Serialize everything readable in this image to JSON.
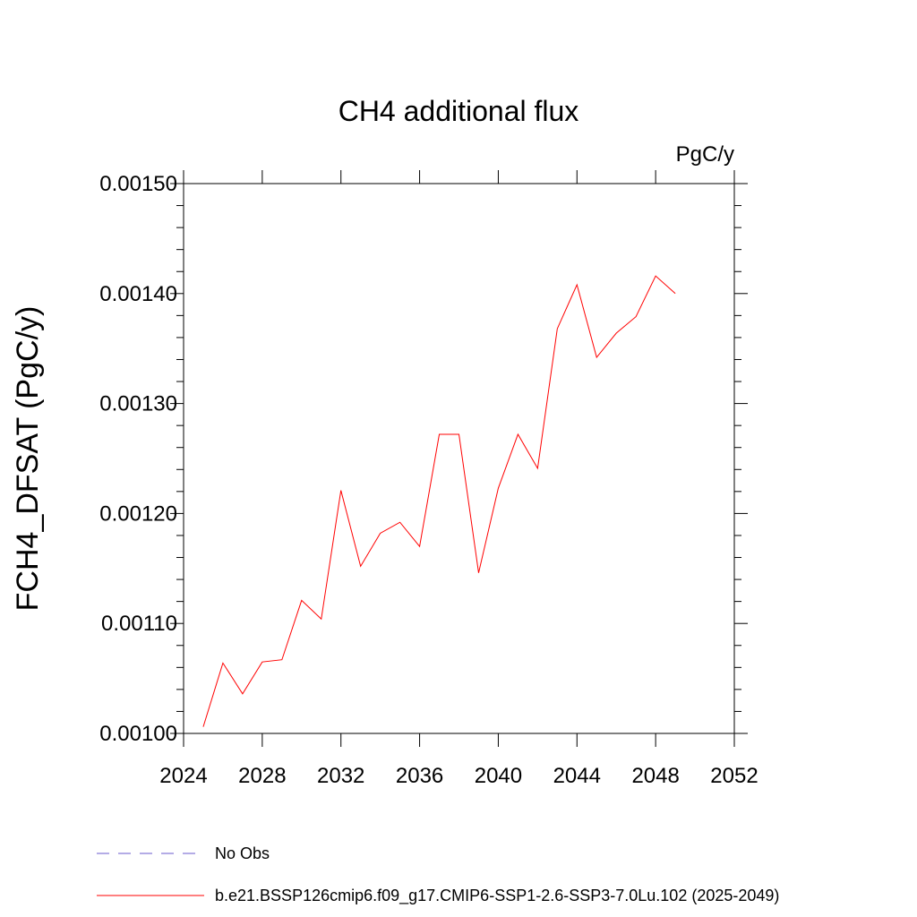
{
  "chart_data": {
    "type": "line",
    "title": "CH4 additional flux",
    "units_label": "PgC/y",
    "ylabel": "FCH4_DFSAT  (PgC/y)",
    "xlabel": "",
    "xlim": [
      2024,
      2052
    ],
    "ylim": [
      0.001,
      0.0015
    ],
    "x_ticks": [
      2024,
      2028,
      2032,
      2036,
      2040,
      2044,
      2048,
      2052
    ],
    "x_tick_labels": [
      "2024",
      "2028",
      "2032",
      "2036",
      "2040",
      "2044",
      "2048",
      "2052"
    ],
    "y_ticks": [
      0.001,
      0.0011,
      0.0012,
      0.0013,
      0.0014,
      0.0015
    ],
    "y_tick_labels": [
      "0.00100",
      "0.00110",
      "0.00120",
      "0.00130",
      "0.00140",
      "0.00150"
    ],
    "grid": false,
    "legend_position": "bottom",
    "series": [
      {
        "name": "No Obs",
        "color": "#6a5acd",
        "style": "dashed",
        "x": [],
        "y": []
      },
      {
        "name": "b.e21.BSSP126cmip6.f09_g17.CMIP6-SSP1-2.6-SSP3-7.0Lu.102 (2025-2049)",
        "color": "#ff0000",
        "style": "solid",
        "x": [
          2025,
          2026,
          2027,
          2028,
          2029,
          2030,
          2031,
          2032,
          2033,
          2034,
          2035,
          2036,
          2037,
          2038,
          2039,
          2040,
          2041,
          2042,
          2043,
          2044,
          2045,
          2046,
          2047,
          2048,
          2049
        ],
        "y": [
          0.001006,
          0.001064,
          0.001036,
          0.001065,
          0.001067,
          0.001121,
          0.001104,
          0.001221,
          0.001152,
          0.001182,
          0.001192,
          0.00117,
          0.001272,
          0.001272,
          0.001146,
          0.001223,
          0.001272,
          0.001241,
          0.001368,
          0.001408,
          0.001342,
          0.001364,
          0.001379,
          0.001416,
          0.0014
        ]
      }
    ]
  }
}
